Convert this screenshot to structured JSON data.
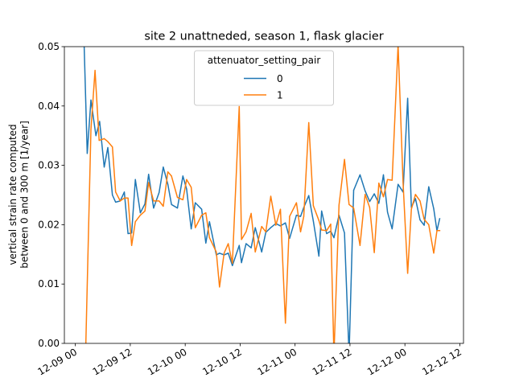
{
  "chart_data": {
    "type": "line",
    "title": "site 2 unattneded, season 1, flask glacier",
    "xlabel": "",
    "ylabel_lines": [
      "vertical strain rate computed",
      "between 0 and 300 m [1/year]"
    ],
    "ylim": [
      0.0,
      0.05
    ],
    "xlim_hours": [
      -2.4,
      84.8
    ],
    "xtick_hours": [
      0,
      12,
      24,
      36,
      48,
      60,
      72,
      84
    ],
    "xtick_labels": [
      "12-09 00",
      "12-09 12",
      "12-10 00",
      "12-10 12",
      "12-11 00",
      "12-11 12",
      "12-12 00",
      "12-12 12"
    ],
    "yticks": [
      0.0,
      0.01,
      0.02,
      0.03,
      0.04,
      0.05
    ],
    "ytick_labels": [
      "0.00",
      "0.01",
      "0.02",
      "0.03",
      "0.04",
      "0.05"
    ],
    "legend": {
      "title": "attenuator_setting_pair",
      "placement": "top-center"
    },
    "series": [
      {
        "name": "0",
        "color": "#1f77b4",
        "x_hours": [
          1.9,
          2.6,
          3.4,
          4.5,
          5.3,
          6.3,
          7.1,
          8.1,
          8.8,
          9.8,
          10.7,
          11.5,
          12.3,
          13.1,
          14.2,
          15.2,
          16.0,
          17.1,
          18.3,
          19.2,
          20.2,
          21.0,
          22.3,
          23.5,
          24.3,
          25.3,
          26.2,
          27.6,
          28.5,
          29.3,
          30.8,
          31.5,
          32.5,
          33.4,
          34.3,
          35.8,
          36.3,
          37.3,
          38.4,
          39.3,
          40.7,
          41.6,
          42.7,
          43.8,
          44.8,
          45.9,
          46.8,
          48.3,
          49.2,
          49.9,
          51.0,
          52.0,
          53.2,
          53.8,
          54.9,
          55.8,
          56.5,
          57.6,
          58.8,
          59.8,
          60.8,
          62.2,
          63.3,
          64.3,
          65.3,
          66.3,
          67.3,
          68.2,
          69.2,
          70.5,
          71.6,
          72.6,
          73.4,
          74.3,
          75.3,
          76.2,
          77.2,
          78.3,
          79.0,
          79.6
        ],
        "values": [
          0.0505,
          0.032,
          0.041,
          0.035,
          0.0374,
          0.0297,
          0.033,
          0.025,
          0.0238,
          0.024,
          0.0255,
          0.0185,
          0.0186,
          0.0276,
          0.022,
          0.0235,
          0.0285,
          0.0228,
          0.0254,
          0.0297,
          0.0268,
          0.0234,
          0.0228,
          0.0282,
          0.026,
          0.0193,
          0.0237,
          0.0226,
          0.0169,
          0.0205,
          0.0149,
          0.0152,
          0.0149,
          0.0152,
          0.0131,
          0.0165,
          0.0136,
          0.0168,
          0.0161,
          0.0195,
          0.0154,
          0.0187,
          0.0195,
          0.0202,
          0.0198,
          0.0203,
          0.0177,
          0.0216,
          0.0214,
          0.0229,
          0.0249,
          0.0206,
          0.0147,
          0.0223,
          0.0185,
          0.0189,
          0.0178,
          0.0216,
          0.0186,
          -0.002,
          0.0258,
          0.0284,
          0.0257,
          0.0239,
          0.0252,
          0.0236,
          0.0284,
          0.0221,
          0.0193,
          0.0268,
          0.0255,
          0.0413,
          0.0229,
          0.0244,
          0.0208,
          0.0199,
          0.0264,
          0.0227,
          0.019,
          0.021
        ]
      },
      {
        "name": "1",
        "color": "#ff7f0e",
        "x_hours": [
          2.3,
          3.4,
          4.3,
          5.2,
          6.3,
          7.1,
          8.1,
          8.8,
          9.8,
          10.7,
          11.5,
          12.3,
          13.1,
          14.2,
          15.2,
          16.0,
          17.1,
          18.3,
          19.2,
          20.2,
          21.0,
          22.3,
          23.5,
          24.3,
          25.3,
          26.2,
          27.6,
          28.5,
          29.3,
          30.8,
          31.5,
          32.5,
          33.4,
          34.3,
          35.8,
          36.3,
          37.3,
          38.4,
          39.3,
          40.7,
          41.6,
          42.7,
          43.8,
          44.8,
          45.9,
          46.8,
          48.3,
          49.2,
          49.9,
          51.0,
          52.0,
          53.2,
          53.8,
          54.9,
          55.8,
          56.5,
          57.6,
          58.8,
          59.8,
          60.8,
          62.2,
          63.3,
          64.3,
          65.3,
          66.3,
          67.3,
          68.2,
          69.2,
          70.5,
          71.6,
          72.6,
          73.4,
          74.3,
          75.3,
          76.2,
          77.2,
          78.3,
          79.0,
          79.6
        ],
        "values": [
          0.0001,
          0.036,
          0.046,
          0.0342,
          0.0345,
          0.034,
          0.0331,
          0.0255,
          0.024,
          0.0245,
          0.0245,
          0.0165,
          0.0205,
          0.0216,
          0.0223,
          0.0271,
          0.024,
          0.024,
          0.0231,
          0.0289,
          0.0282,
          0.0246,
          0.0242,
          0.0276,
          0.0263,
          0.0195,
          0.0216,
          0.022,
          0.0178,
          0.0154,
          0.0095,
          0.0152,
          0.0168,
          0.0135,
          0.0399,
          0.0175,
          0.0188,
          0.0219,
          0.0154,
          0.0197,
          0.0188,
          0.0248,
          0.0199,
          0.0226,
          0.0034,
          0.0214,
          0.0237,
          0.0188,
          0.0214,
          0.0372,
          0.0232,
          0.0207,
          0.0191,
          0.019,
          0.0201,
          -0.002,
          0.0233,
          0.031,
          0.0234,
          0.0228,
          0.0165,
          0.0251,
          0.0229,
          0.0153,
          0.027,
          0.0247,
          0.0276,
          0.0275,
          0.0503,
          0.0271,
          0.0118,
          0.0226,
          0.0251,
          0.024,
          0.0209,
          0.02,
          0.0152,
          0.019,
          0.019
        ]
      }
    ]
  }
}
